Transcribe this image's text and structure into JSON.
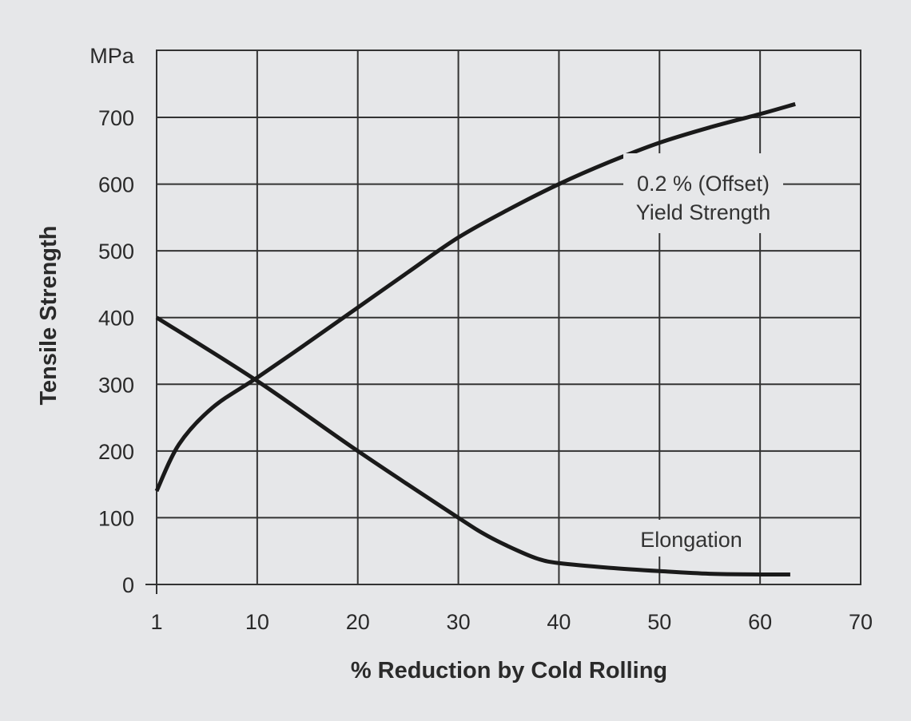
{
  "chart_data": {
    "type": "line",
    "title": "",
    "xlabel": "% Reduction by Cold Rolling",
    "ylabel": "Tensile Strength",
    "yunit": "MPa",
    "x_ticks": [
      1,
      10,
      20,
      30,
      40,
      50,
      60,
      70
    ],
    "y_ticks": [
      0,
      100,
      200,
      300,
      400,
      500,
      600,
      700
    ],
    "xlim": [
      1,
      70
    ],
    "ylim": [
      0,
      800
    ],
    "grid": true,
    "colors": {
      "background": "#e6e7e9",
      "grid": "#333333",
      "line": "#1a1a1a"
    },
    "series": [
      {
        "name": "0.2 % (Offset) Yield Strength",
        "label_lines": [
          "0.2 % (Offset)",
          "Yield Strength"
        ],
        "x": [
          1,
          3,
          6,
          10,
          15,
          20,
          25,
          30,
          35,
          40,
          45,
          50,
          55,
          60,
          63.5
        ],
        "y": [
          140,
          210,
          265,
          310,
          362,
          415,
          468,
          520,
          562,
          600,
          633,
          662,
          685,
          705,
          720
        ]
      },
      {
        "name": "Elongation",
        "label_lines": [
          "Elongation"
        ],
        "x": [
          1,
          10,
          20,
          30,
          33,
          36,
          38,
          40,
          45,
          50,
          55,
          60,
          63
        ],
        "y": [
          400,
          305,
          200,
          100,
          72,
          50,
          38,
          32,
          25,
          20,
          16,
          15,
          15
        ]
      }
    ]
  }
}
